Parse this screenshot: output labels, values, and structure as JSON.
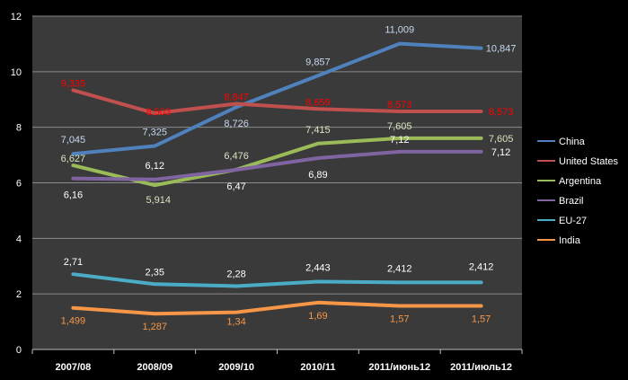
{
  "chart_data": {
    "type": "line",
    "categories": [
      "2007/08",
      "2008/09",
      "2009/10",
      "2010/11",
      "2011/июнь12",
      "2011/июль12"
    ],
    "ylim": [
      0,
      12
    ],
    "yticks": [
      "0",
      "2",
      "4",
      "6",
      "8",
      "10",
      "12"
    ],
    "grid": true,
    "legend": "right",
    "series": [
      {
        "name": "China",
        "color": "#4f81bd",
        "values": [
          7.045,
          7.325,
          8.726,
          9.857,
          11.009,
          10.847
        ],
        "labels": [
          "7,045",
          "7,325",
          "8,726",
          "9,857",
          "11,009",
          "10,847"
        ],
        "label_color": "#c6d9f1"
      },
      {
        "name": "United States",
        "color": "#c0504d",
        "values": [
          9.335,
          8.503,
          8.847,
          8.659,
          8.573,
          8.573
        ],
        "labels": [
          "9,335",
          "8,503",
          "8,847",
          "8,659",
          "8,573",
          "8,573"
        ],
        "label_color": "#ff0000"
      },
      {
        "name": "Argentina",
        "color": "#9bbb59",
        "values": [
          6.627,
          5.914,
          6.476,
          7.415,
          7.605,
          7.605
        ],
        "labels": [
          "6,627",
          "5,914",
          "6,476",
          "7,415",
          "7,605",
          "7,605"
        ],
        "label_color": "#d7e4bd"
      },
      {
        "name": "Brazil",
        "color": "#8064a2",
        "values": [
          6.16,
          6.12,
          6.47,
          6.89,
          7.12,
          7.12
        ],
        "labels": [
          "6,16",
          "6,12",
          "6,47",
          "6,89",
          "7,12",
          "7,12"
        ],
        "label_color": "#ffffff"
      },
      {
        "name": "EU-27",
        "color": "#4bacc6",
        "values": [
          2.71,
          2.35,
          2.28,
          2.443,
          2.412,
          2.412
        ],
        "labels": [
          "2,71",
          "2,35",
          "2,28",
          "2,443",
          "2,412",
          "2,412"
        ],
        "label_color": "#ffffff"
      },
      {
        "name": "India",
        "color": "#f79646",
        "values": [
          1.499,
          1.287,
          1.34,
          1.69,
          1.57,
          1.57
        ],
        "labels": [
          "1,499",
          "1,287",
          "1,34",
          "1,69",
          "1,57",
          "1,57"
        ],
        "label_color": "#f79646"
      }
    ]
  }
}
